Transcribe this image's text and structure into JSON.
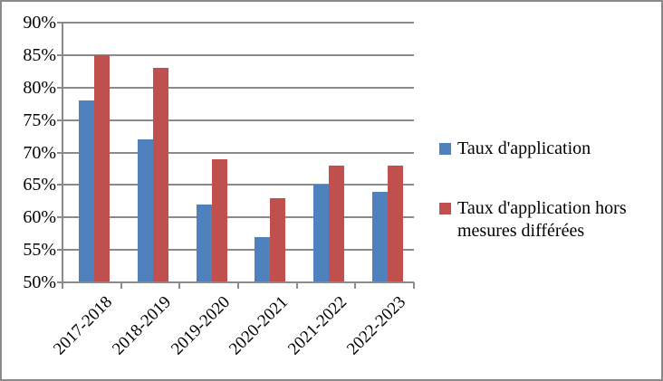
{
  "chart_data": {
    "type": "bar",
    "title": "",
    "categories": [
      "2017-2018",
      "2018-2019",
      "2019-2020",
      "2020-2021",
      "2021-2022",
      "2022-2023"
    ],
    "series": [
      {
        "name": "Taux d'application",
        "color": "#4F81BD",
        "values": [
          78,
          72,
          62,
          57,
          65,
          64
        ]
      },
      {
        "name": "Taux d'application hors mesures différées",
        "color": "#C0504D",
        "values": [
          85,
          83,
          69,
          63,
          68,
          68
        ]
      }
    ],
    "ylabel": "",
    "xlabel": "",
    "ylim": [
      50,
      90
    ],
    "ytick_step": 5,
    "ytick_labels": [
      "50%",
      "55%",
      "60%",
      "65%",
      "70%",
      "75%",
      "80%",
      "85%",
      "90%"
    ],
    "grid": true,
    "legend_position": "right"
  },
  "legend": {
    "items": [
      {
        "label": "Taux d'application",
        "color": "#4F81BD"
      },
      {
        "label": "Taux d'application hors mesures différées",
        "color": "#C0504D"
      }
    ]
  },
  "colors": {
    "bar_blue": "#4F81BD",
    "bar_red": "#C0504D",
    "grid": "#8a8a8a",
    "axis": "#8a8a8a",
    "border": "#8a8a8a",
    "text": "#000000",
    "background": "#ffffff"
  }
}
